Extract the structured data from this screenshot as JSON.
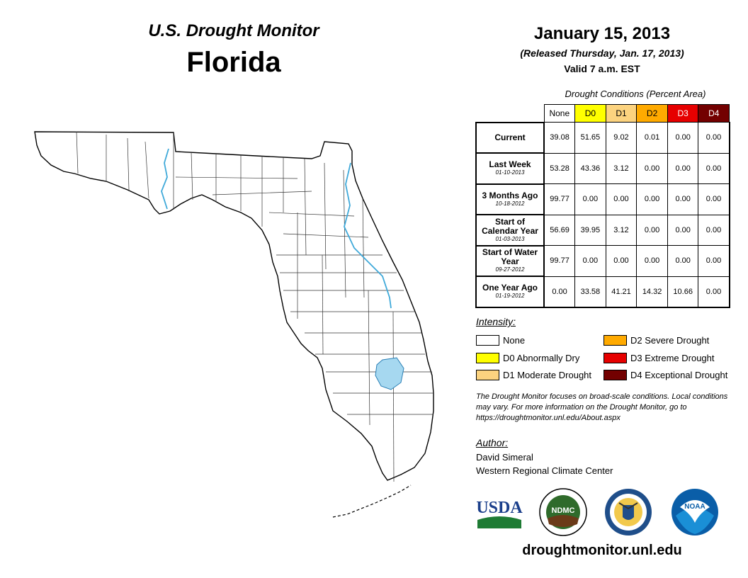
{
  "header": {
    "subtitle": "U.S. Drought Monitor",
    "title": "Florida",
    "date": "January 15, 2013",
    "released": "(Released Thursday, Jan. 17, 2013)",
    "valid": "Valid 7 a.m. EST"
  },
  "table": {
    "title": "Drought Conditions (Percent Area)",
    "columns": [
      {
        "label": "None",
        "color": "#ffffff",
        "text_color": "#000000"
      },
      {
        "label": "D0",
        "color": "#ffff00",
        "text_color": "#000000"
      },
      {
        "label": "D1",
        "color": "#fcd37f",
        "text_color": "#000000"
      },
      {
        "label": "D2",
        "color": "#ffaa00",
        "text_color": "#000000"
      },
      {
        "label": "D3",
        "color": "#e60000",
        "text_color": "#ffffff"
      },
      {
        "label": "D4",
        "color": "#730000",
        "text_color": "#ffffff"
      }
    ],
    "rows": [
      {
        "label": "Current",
        "date": "",
        "values": [
          "39.08",
          "51.65",
          "9.02",
          "0.01",
          "0.00",
          "0.00"
        ]
      },
      {
        "label": "Last Week",
        "date": "01-10-2013",
        "values": [
          "53.28",
          "43.36",
          "3.12",
          "0.00",
          "0.00",
          "0.00"
        ]
      },
      {
        "label": "3 Months Ago",
        "date": "10-18-2012",
        "values": [
          "99.77",
          "0.00",
          "0.00",
          "0.00",
          "0.00",
          "0.00"
        ]
      },
      {
        "label": "Start of Calendar Year",
        "date": "01-03-2013",
        "values": [
          "56.69",
          "39.95",
          "3.12",
          "0.00",
          "0.00",
          "0.00"
        ]
      },
      {
        "label": "Start of Water Year",
        "date": "09-27-2012",
        "values": [
          "99.77",
          "0.00",
          "0.00",
          "0.00",
          "0.00",
          "0.00"
        ]
      },
      {
        "label": "One Year Ago",
        "date": "01-19-2012",
        "values": [
          "0.00",
          "33.58",
          "41.21",
          "14.32",
          "10.66",
          "0.00"
        ]
      }
    ]
  },
  "legend": {
    "title": "Intensity:",
    "items": [
      {
        "label": "None",
        "color": "#ffffff"
      },
      {
        "label": "D0 Abnormally Dry",
        "color": "#ffff00"
      },
      {
        "label": "D1 Moderate Drought",
        "color": "#fcd37f"
      },
      {
        "label": "D2 Severe Drought",
        "color": "#ffaa00"
      },
      {
        "label": "D3 Extreme Drought",
        "color": "#e60000"
      },
      {
        "label": "D4 Exceptional Drought",
        "color": "#730000"
      }
    ]
  },
  "note": "The Drought Monitor focuses on broad-scale conditions. Local conditions may vary. For more information on the Drought Monitor, go to https://droughtmonitor.unl.edu/About.aspx",
  "author": {
    "title": "Author:",
    "name": "David Simeral",
    "org": "Western Regional Climate Center"
  },
  "logos": [
    {
      "text": "USDA",
      "icon": "usda-logo"
    },
    {
      "text": "NDMC",
      "icon": "ndmc-logo"
    },
    {
      "text": "",
      "icon": "commerce-seal"
    },
    {
      "text": "NOAA",
      "icon": "noaa-logo"
    }
  ],
  "website": "droughtmonitor.unl.edu",
  "map": {
    "colors": {
      "none": "#ffffff",
      "d0": "#ffff00",
      "d1": "#fcd37f",
      "water": "#a6d8f0",
      "river": "#3fa9d9",
      "outline": "#000000"
    }
  }
}
